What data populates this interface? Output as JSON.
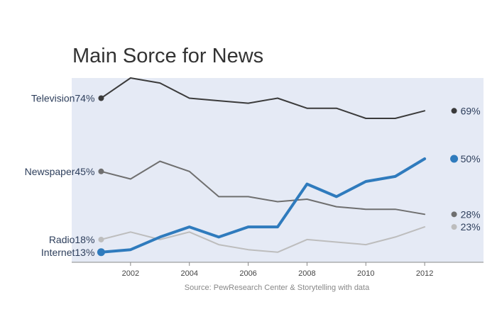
{
  "chart_data": {
    "type": "line",
    "title": "Main Sorce for News",
    "source": "Source: PewResearch Center & Storytelling with data",
    "x": [
      2001,
      2002,
      2003,
      2004,
      2005,
      2006,
      2007,
      2008,
      2009,
      2010,
      2011,
      2012
    ],
    "x_ticks": [
      2002,
      2004,
      2006,
      2008,
      2010,
      2012
    ],
    "xlim": [
      2000.0,
      2014.0
    ],
    "ylim": [
      9,
      82
    ],
    "grid": false,
    "series": [
      {
        "name": "Television",
        "color": "#3b3b3b",
        "width": 2,
        "values": [
          74,
          82,
          80,
          74,
          73,
          72,
          74,
          70,
          70,
          66,
          66,
          69
        ],
        "start_label": "Television74%",
        "end_value": 69,
        "end_label": "69%"
      },
      {
        "name": "Newspaper",
        "color": "#6f6f6f",
        "width": 2,
        "values": [
          45,
          42,
          49,
          45,
          35,
          35,
          33,
          34,
          31,
          30,
          30,
          28
        ],
        "start_label": "Newspaper45%",
        "end_value": 28,
        "end_label": "28%"
      },
      {
        "name": "Radio",
        "color": "#bdbdbd",
        "width": 2,
        "values": [
          18,
          21,
          18,
          21,
          16,
          14,
          13,
          18,
          17,
          16,
          19,
          23
        ],
        "start_label": "Radio18%",
        "end_value": 23,
        "end_label": "23%"
      },
      {
        "name": "Internet",
        "color": "#2f7bbd",
        "width": 4,
        "values": [
          13,
          14,
          19,
          23,
          19,
          23,
          23,
          40,
          35,
          41,
          43,
          50
        ],
        "start_label": "Internet13%",
        "end_value": 50,
        "end_label": "50%"
      }
    ]
  },
  "plot_bg": "#e5eaf5"
}
